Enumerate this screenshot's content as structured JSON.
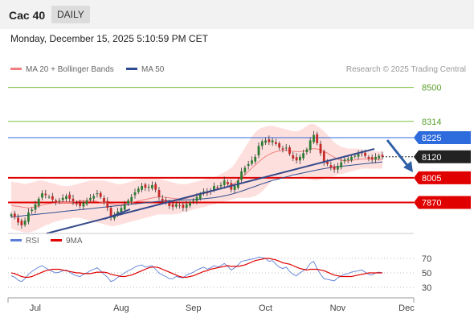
{
  "header": {
    "ticker": "Cac 40",
    "period": "DAILY"
  },
  "timestamp": "Monday, December 15, 2025 5:10:59 PM CET",
  "legend": {
    "ma20": {
      "label": "MA 20 + Bollinger Bands",
      "color": "#f08080"
    },
    "ma50": {
      "label": "MA 50",
      "color": "#2e4e8f"
    }
  },
  "credit": "Research © 2025 Trading Central",
  "rsi_legend": {
    "rsi": {
      "label": "RSI",
      "color": "#5b7fd6"
    },
    "ma": {
      "label": "9MA",
      "color": "#e00000"
    }
  },
  "chart_data": [
    {
      "type": "candlestick",
      "y_range": [
        7700,
        8560
      ],
      "levels": [
        {
          "value": 8500,
          "label": "8500",
          "kind": "green",
          "color": "#7cc243"
        },
        {
          "value": 8314,
          "label": "8314",
          "kind": "green",
          "color": "#7cc243"
        },
        {
          "value": 8225,
          "label": "8225",
          "kind": "blue",
          "color": "#2e6bdc"
        },
        {
          "value": 8120,
          "label": "8120",
          "kind": "price",
          "color": "#222222"
        },
        {
          "value": 8005,
          "label": "8005",
          "kind": "red",
          "color": "#e00000"
        },
        {
          "value": 7870,
          "label": "7870",
          "kind": "red",
          "color": "#e00000"
        }
      ],
      "months": [
        "Jul",
        "Aug",
        "Sep",
        "Oct",
        "Nov",
        "Dec"
      ],
      "closes": [
        7805,
        7790,
        7760,
        7745,
        7770,
        7815,
        7830,
        7860,
        7890,
        7920,
        7910,
        7900,
        7885,
        7870,
        7880,
        7895,
        7905,
        7890,
        7875,
        7860,
        7850,
        7870,
        7880,
        7895,
        7905,
        7920,
        7900,
        7870,
        7840,
        7790,
        7800,
        7820,
        7840,
        7860,
        7880,
        7900,
        7925,
        7945,
        7960,
        7950,
        7955,
        7965,
        7940,
        7900,
        7880,
        7870,
        7850,
        7845,
        7860,
        7850,
        7840,
        7860,
        7870,
        7880,
        7900,
        7915,
        7930,
        7920,
        7935,
        7960,
        7950,
        7965,
        7990,
        7970,
        7940,
        7960,
        7990,
        8040,
        8060,
        8080,
        8100,
        8120,
        8180,
        8205,
        8210,
        8200,
        8210,
        8190,
        8170,
        8160,
        8170,
        8135,
        8110,
        8100,
        8120,
        8140,
        8160,
        8210,
        8240,
        8195,
        8140,
        8090,
        8080,
        8060,
        8050,
        8070,
        8090,
        8105,
        8110,
        8120,
        8125,
        8135,
        8140,
        8125,
        8110,
        8105,
        8120,
        8125,
        8120
      ],
      "bb_upper": [
        7985,
        7980,
        7980,
        7975,
        7970,
        7975,
        7980,
        7985,
        7990,
        7990,
        7985,
        7980,
        7975,
        7970,
        7965,
        7960,
        7960,
        7960,
        7965,
        7970,
        7975,
        7980,
        7985,
        7990,
        7990,
        7990,
        7990,
        7990,
        7985,
        7980,
        7975,
        7970,
        7970,
        7975,
        7980,
        7985,
        7990,
        7995,
        8000,
        8005,
        8010,
        8010,
        8005,
        8000,
        7995,
        7990,
        7985,
        7980,
        7975,
        7970,
        7970,
        7970,
        7975,
        7980,
        7985,
        7990,
        7995,
        8000,
        8005,
        8010,
        8015,
        8025,
        8035,
        8045,
        8060,
        8080,
        8110,
        8140,
        8170,
        8200,
        8230,
        8255,
        8270,
        8280,
        8285,
        8290,
        8290,
        8285,
        8280,
        8275,
        8270,
        8265,
        8260,
        8260,
        8265,
        8275,
        8290,
        8300,
        8300,
        8290,
        8275,
        8260,
        8240,
        8220,
        8200,
        8185,
        8175,
        8170,
        8165,
        8165,
        8165,
        8165,
        8160,
        8155,
        8150,
        8150,
        8150,
        8150,
        8150
      ],
      "bb_lower": [
        7725,
        7720,
        7715,
        7710,
        7705,
        7705,
        7710,
        7715,
        7725,
        7735,
        7745,
        7750,
        7760,
        7765,
        7770,
        7775,
        7780,
        7780,
        7785,
        7785,
        7785,
        7780,
        7775,
        7770,
        7765,
        7760,
        7755,
        7750,
        7745,
        7740,
        7740,
        7745,
        7750,
        7755,
        7760,
        7765,
        7770,
        7775,
        7780,
        7785,
        7790,
        7795,
        7800,
        7805,
        7805,
        7805,
        7805,
        7805,
        7805,
        7810,
        7815,
        7820,
        7825,
        7830,
        7835,
        7840,
        7845,
        7850,
        7855,
        7860,
        7865,
        7870,
        7875,
        7880,
        7885,
        7890,
        7895,
        7895,
        7895,
        7895,
        7900,
        7905,
        7915,
        7930,
        7950,
        7970,
        7990,
        8000,
        8005,
        8010,
        8015,
        8020,
        8020,
        8015,
        8010,
        8005,
        8000,
        7995,
        7990,
        7990,
        7995,
        8000,
        8005,
        8010,
        8015,
        8020,
        8025,
        8030,
        8035,
        8040,
        8045,
        8050,
        8055,
        8055,
        8055,
        8055,
        8055,
        8055,
        8055
      ],
      "ma20": [
        7855,
        7850,
        7848,
        7845,
        7842,
        7840,
        7842,
        7845,
        7850,
        7855,
        7860,
        7863,
        7865,
        7867,
        7870,
        7870,
        7870,
        7870,
        7872,
        7875,
        7878,
        7880,
        7880,
        7880,
        7878,
        7875,
        7872,
        7870,
        7866,
        7862,
        7858,
        7856,
        7858,
        7862,
        7866,
        7870,
        7874,
        7878,
        7882,
        7886,
        7890,
        7894,
        7898,
        7900,
        7900,
        7898,
        7895,
        7892,
        7890,
        7888,
        7890,
        7893,
        7898,
        7903,
        7908,
        7913,
        7918,
        7923,
        7928,
        7935,
        7940,
        7945,
        7952,
        7958,
        7965,
        7975,
        7990,
        8005,
        8022,
        8040,
        8058,
        8075,
        8092,
        8108,
        8122,
        8133,
        8142,
        8148,
        8152,
        8155,
        8155,
        8153,
        8150,
        8148,
        8148,
        8150,
        8155,
        8162,
        8165,
        8163,
        8158,
        8150,
        8140,
        8128,
        8117,
        8108,
        8100,
        8098,
        8098,
        8100,
        8103,
        8106,
        8108,
        8108,
        8107,
        8106,
        8106,
        8106,
        8106
      ],
      "ma50": [
        7790,
        7792,
        7794,
        7796,
        7798,
        7800,
        7802,
        7804,
        7806,
        7808,
        7810,
        7812,
        7814,
        7816,
        7818,
        7820,
        7822,
        7824,
        7826,
        7828,
        7830,
        7832,
        7834,
        7836,
        7838,
        7840,
        7842,
        7844,
        7846,
        7848,
        7850,
        7852,
        7854,
        7856,
        7858,
        7860,
        7862,
        7864,
        7866,
        7868,
        7870,
        7872,
        7874,
        7876,
        7877,
        7878,
        7879,
        7880,
        7881,
        7882,
        7883,
        7884,
        7885,
        7886,
        7887,
        7888,
        7890,
        7892,
        7894,
        7896,
        7899,
        7902,
        7906,
        7910,
        7915,
        7920,
        7926,
        7932,
        7938,
        7945,
        7952,
        7958,
        7965,
        7972,
        7978,
        7984,
        7990,
        7995,
        8000,
        8005,
        8010,
        8015,
        8020,
        8024,
        8028,
        8032,
        8036,
        8040,
        8044,
        8048,
        8052,
        8055,
        8058,
        8061,
        8064,
        8066,
        8068,
        8070,
        8072,
        8074,
        8076,
        8078,
        8080,
        8082,
        8084,
        8086,
        8088,
        8090,
        8092
      ]
    },
    {
      "type": "line",
      "title": "RSI",
      "y_range": [
        20,
        80
      ],
      "ticks": [
        70,
        50,
        30
      ],
      "series": [
        {
          "name": "RSI",
          "values": [
            46,
            44,
            40,
            38,
            42,
            48,
            52,
            55,
            58,
            60,
            57,
            54,
            52,
            50,
            51,
            53,
            54,
            51,
            48,
            46,
            45,
            48,
            50,
            53,
            55,
            57,
            53,
            48,
            44,
            38,
            40,
            44,
            47,
            50,
            53,
            55,
            58,
            60,
            61,
            58,
            59,
            60,
            55,
            50,
            47,
            45,
            42,
            42,
            45,
            44,
            43,
            47,
            49,
            51,
            54,
            56,
            58,
            55,
            57,
            60,
            58,
            60,
            63,
            59,
            54,
            57,
            61,
            66,
            67,
            68,
            69,
            70,
            72,
            71,
            70,
            66,
            67,
            62,
            58,
            56,
            58,
            52,
            48,
            46,
            50,
            53,
            56,
            63,
            66,
            56,
            48,
            42,
            41,
            40,
            39,
            43,
            46,
            48,
            49,
            51,
            52,
            53,
            54,
            51,
            48,
            47,
            50,
            51,
            50
          ]
        },
        {
          "name": "9MA",
          "values": [
            50,
            49,
            47,
            45,
            44,
            44,
            45,
            47,
            49,
            51,
            53,
            54,
            55,
            55,
            55,
            54,
            53,
            52,
            51,
            50,
            50,
            49,
            49,
            49,
            50,
            51,
            51,
            51,
            50,
            48,
            47,
            46,
            45,
            45,
            46,
            47,
            49,
            51,
            53,
            55,
            57,
            58,
            58,
            57,
            55,
            53,
            51,
            49,
            47,
            45,
            44,
            44,
            45,
            46,
            48,
            50,
            52,
            53,
            55,
            56,
            57,
            58,
            59,
            60,
            59,
            59,
            59,
            60,
            61,
            63,
            65,
            67,
            68,
            69,
            70,
            70,
            69,
            68,
            66,
            64,
            63,
            62,
            60,
            58,
            56,
            55,
            54,
            55,
            55,
            55,
            54,
            53,
            51,
            49,
            47,
            46,
            45,
            45,
            45,
            45,
            46,
            47,
            48,
            49,
            50,
            50,
            50,
            50,
            50
          ]
        }
      ]
    }
  ]
}
